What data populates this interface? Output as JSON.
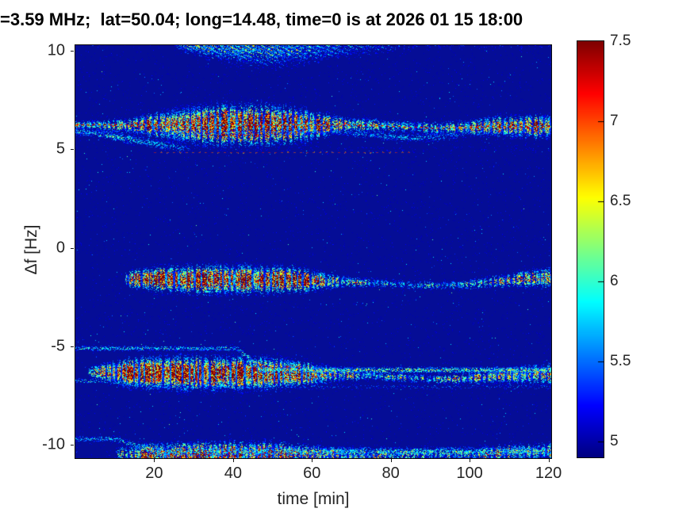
{
  "title": "=3.59 MHz;  lat=50.04; long=14.48, time=0 is at 2026 01 15 18:00",
  "axes": {
    "x": {
      "label": "time [min]",
      "ticks": [
        20,
        40,
        60,
        80,
        100,
        120
      ],
      "min": 0,
      "max": 120.7
    },
    "y": {
      "label": "Δf [Hz]",
      "ticks": [
        10,
        5,
        0,
        -5,
        -10
      ],
      "min": -10.7,
      "max": 10.3
    }
  },
  "colorbar": {
    "ticks": [
      7.5,
      7,
      6.5,
      6,
      5.5,
      5
    ],
    "top_value": 7.5,
    "bottom_value": 4.9,
    "colormap": "jet"
  },
  "chart_data": {
    "type": "heatmap",
    "title": "=3.59 MHz;  lat=50.04; long=14.48, time=0 is at 2026 01 15 18:00",
    "xlabel": "time [min]",
    "ylabel": "Δf [Hz]",
    "x_range": [
      0,
      120.7
    ],
    "y_range": [
      -10.7,
      10.3
    ],
    "color_range": [
      4.9,
      7.5
    ],
    "colormap": "jet",
    "background_level": 5.0,
    "background_color": "#050D96",
    "noise": {
      "sparse_dots": 9000,
      "sparse_max": 5.3,
      "bright_dots": 620,
      "bright_max": 5.85,
      "cyan_dots": 45
    },
    "bands": [
      {
        "name": "carrier-upper-6.2Hz",
        "stripes": true,
        "density": 2.0,
        "drift": [
          [
            0,
            6.25
          ],
          [
            75,
            6.25
          ],
          [
            85,
            6.15
          ],
          [
            95,
            6.08
          ],
          [
            105,
            6.18
          ],
          [
            121,
            6.2
          ]
        ],
        "amp": [
          [
            0,
            6.15
          ],
          [
            12,
            6.2
          ],
          [
            16,
            6.6
          ],
          [
            21,
            7.1
          ],
          [
            27,
            7.35
          ],
          [
            38,
            7.5
          ],
          [
            50,
            7.45
          ],
          [
            58,
            7.3
          ],
          [
            62,
            7.0
          ],
          [
            66,
            6.5
          ],
          [
            70,
            6.2
          ],
          [
            78,
            6.05
          ],
          [
            88,
            6.0
          ],
          [
            98,
            6.15
          ],
          [
            104,
            6.5
          ],
          [
            110,
            6.75
          ],
          [
            116,
            6.9
          ],
          [
            121,
            6.9
          ]
        ],
        "sigma": [
          [
            0,
            0.12
          ],
          [
            14,
            0.2
          ],
          [
            20,
            0.35
          ],
          [
            30,
            0.5
          ],
          [
            45,
            0.55
          ],
          [
            58,
            0.45
          ],
          [
            64,
            0.3
          ],
          [
            70,
            0.22
          ],
          [
            85,
            0.18
          ],
          [
            100,
            0.22
          ],
          [
            108,
            0.3
          ],
          [
            121,
            0.32
          ]
        ],
        "line": {
          "on": 4,
          "off": 3,
          "value": 7.3,
          "gap_value": 5.75
        }
      },
      {
        "name": "trace-5.6Hz-left",
        "stripes": false,
        "density": 1.6,
        "drift": [
          [
            0,
            5.95
          ],
          [
            8,
            5.75
          ],
          [
            16,
            5.45
          ],
          [
            24,
            5.2
          ],
          [
            30,
            5.05
          ]
        ],
        "amp": [
          [
            0,
            6.05
          ],
          [
            10,
            6.0
          ],
          [
            20,
            5.85
          ],
          [
            27,
            5.6
          ],
          [
            30,
            5.2
          ]
        ],
        "sigma": [
          [
            0,
            0.12
          ],
          [
            30,
            0.18
          ]
        ]
      },
      {
        "name": "trace-5.7Hz-mid",
        "stripes": false,
        "density": 1.4,
        "drift": [
          [
            66,
            5.9
          ],
          [
            75,
            5.75
          ],
          [
            85,
            5.6
          ],
          [
            93,
            5.65
          ],
          [
            100,
            5.85
          ]
        ],
        "amp": [
          [
            66,
            5.45
          ],
          [
            72,
            5.75
          ],
          [
            82,
            5.8
          ],
          [
            92,
            5.7
          ],
          [
            100,
            5.4
          ]
        ],
        "sigma": [
          [
            66,
            0.12
          ],
          [
            100,
            0.15
          ]
        ]
      },
      {
        "name": "faint-dashed-line-4.9Hz",
        "lineOnly": true,
        "alpha": 0.5,
        "drift": [
          [
            20,
            4.87
          ],
          [
            85,
            4.87
          ]
        ],
        "amp": [
          [
            20,
            6.9
          ],
          [
            85,
            6.9
          ]
        ],
        "sigma": [
          [
            20,
            0.05
          ],
          [
            85,
            0.05
          ]
        ],
        "line": {
          "on": 3,
          "off": 5,
          "value": 7.0,
          "gap_value": 0
        }
      },
      {
        "name": "band-minus1.6Hz",
        "stripes": true,
        "density": 2.0,
        "drift": [
          [
            0,
            -1.55
          ],
          [
            30,
            -1.6
          ],
          [
            55,
            -1.62
          ],
          [
            75,
            -1.78
          ],
          [
            88,
            -1.9
          ],
          [
            97,
            -1.88
          ],
          [
            107,
            -1.7
          ],
          [
            115,
            -1.55
          ],
          [
            121,
            -1.5
          ]
        ],
        "amp": [
          [
            0,
            5.0
          ],
          [
            12.5,
            5.0
          ],
          [
            13,
            6.4
          ],
          [
            17,
            7.0
          ],
          [
            22,
            7.2
          ],
          [
            30,
            7.4
          ],
          [
            42,
            7.35
          ],
          [
            52,
            7.2
          ],
          [
            60,
            7.0
          ],
          [
            64,
            6.5
          ],
          [
            68,
            6.1
          ],
          [
            75,
            5.85
          ],
          [
            88,
            5.8
          ],
          [
            97,
            5.85
          ],
          [
            105,
            6.0
          ],
          [
            112,
            6.3
          ],
          [
            118,
            6.45
          ],
          [
            121,
            6.45
          ]
        ],
        "sigma": [
          [
            13,
            0.22
          ],
          [
            20,
            0.32
          ],
          [
            35,
            0.4
          ],
          [
            55,
            0.35
          ],
          [
            64,
            0.22
          ],
          [
            72,
            0.14
          ],
          [
            95,
            0.13
          ],
          [
            107,
            0.18
          ],
          [
            115,
            0.25
          ],
          [
            121,
            0.28
          ]
        ]
      },
      {
        "name": "band-minus6.4Hz",
        "stripes": true,
        "density": 2.3,
        "drift": [
          [
            0,
            -6.3
          ],
          [
            25,
            -6.35
          ],
          [
            50,
            -6.38
          ],
          [
            65,
            -6.42
          ],
          [
            75,
            -6.5
          ],
          [
            85,
            -6.6
          ],
          [
            93,
            -6.67
          ],
          [
            100,
            -6.62
          ],
          [
            108,
            -6.5
          ],
          [
            115,
            -6.42
          ],
          [
            121,
            -6.4
          ]
        ],
        "amp": [
          [
            0,
            5.0
          ],
          [
            3,
            5.0
          ],
          [
            3.5,
            5.7
          ],
          [
            7,
            6.5
          ],
          [
            11,
            7.1
          ],
          [
            16,
            7.4
          ],
          [
            24,
            7.5
          ],
          [
            40,
            7.5
          ],
          [
            52,
            7.45
          ],
          [
            58,
            7.2
          ],
          [
            63,
            6.8
          ],
          [
            67,
            6.3
          ],
          [
            72,
            6.05
          ],
          [
            80,
            5.9
          ],
          [
            90,
            5.9
          ],
          [
            98,
            6.0
          ],
          [
            105,
            6.2
          ],
          [
            110,
            6.5
          ],
          [
            115,
            6.6
          ],
          [
            121,
            6.6
          ]
        ],
        "sigma": [
          [
            3,
            0.15
          ],
          [
            8,
            0.28
          ],
          [
            15,
            0.4
          ],
          [
            30,
            0.45
          ],
          [
            50,
            0.42
          ],
          [
            60,
            0.3
          ],
          [
            66,
            0.2
          ],
          [
            75,
            0.14
          ],
          [
            95,
            0.14
          ],
          [
            105,
            0.2
          ],
          [
            112,
            0.26
          ],
          [
            121,
            0.3
          ]
        ]
      },
      {
        "name": "streak-into-band-minus6",
        "stripes": false,
        "density": 1.6,
        "drift": [
          [
            41,
            -5.1
          ],
          [
            44,
            -5.6
          ],
          [
            47,
            -6.2
          ]
        ],
        "amp": [
          [
            41,
            5.9
          ],
          [
            47,
            6.2
          ]
        ],
        "sigma": [
          [
            41,
            0.08
          ],
          [
            47,
            0.1
          ]
        ]
      },
      {
        "name": "tail-below-minus6-start",
        "stripes": false,
        "density": 1.2,
        "drift": [
          [
            7,
            -6.75
          ],
          [
            17,
            -6.95
          ],
          [
            27,
            -7.05
          ]
        ],
        "amp": [
          [
            7,
            5.8
          ],
          [
            17,
            5.75
          ],
          [
            27,
            5.5
          ]
        ],
        "sigma": [
          [
            7,
            0.1
          ],
          [
            27,
            0.1
          ]
        ]
      },
      {
        "name": "band-minus10.4Hz",
        "stripes": true,
        "density": 1.9,
        "drift": [
          [
            0,
            -10.45
          ],
          [
            25,
            -10.5
          ],
          [
            45,
            -10.42
          ],
          [
            60,
            -10.45
          ],
          [
            75,
            -10.55
          ],
          [
            90,
            -10.5
          ],
          [
            105,
            -10.45
          ],
          [
            121,
            -10.3
          ]
        ],
        "amp": [
          [
            0,
            5.0
          ],
          [
            10,
            5.0
          ],
          [
            10.5,
            5.7
          ],
          [
            14,
            6.2
          ],
          [
            19,
            6.9
          ],
          [
            26,
            7.25
          ],
          [
            38,
            7.2
          ],
          [
            48,
            7.05
          ],
          [
            56,
            6.8
          ],
          [
            62,
            6.5
          ],
          [
            70,
            6.35
          ],
          [
            78,
            6.1
          ],
          [
            86,
            5.9
          ],
          [
            95,
            5.85
          ],
          [
            103,
            6.0
          ],
          [
            110,
            6.25
          ],
          [
            116,
            6.35
          ],
          [
            121,
            6.35
          ]
        ],
        "sigma": [
          [
            10,
            0.2
          ],
          [
            20,
            0.32
          ],
          [
            45,
            0.33
          ],
          [
            62,
            0.22
          ],
          [
            80,
            0.18
          ],
          [
            100,
            0.2
          ],
          [
            110,
            0.25
          ],
          [
            121,
            0.25
          ]
        ]
      },
      {
        "name": "streaks-into-bottom-band",
        "stripes": false,
        "density": 1.4,
        "drift": [
          [
            10,
            -9.7
          ],
          [
            15,
            -10.0
          ],
          [
            21,
            -10.35
          ]
        ],
        "amp": [
          [
            10,
            5.8
          ],
          [
            21,
            6.0
          ]
        ],
        "sigma": [
          [
            10,
            0.1
          ],
          [
            21,
            0.15
          ]
        ]
      },
      {
        "name": "band-plus10.3Hz",
        "stripes": false,
        "diag": true,
        "density": 1.4,
        "drift": [
          [
            0,
            10.45
          ],
          [
            10,
            10.45
          ],
          [
            26,
            10.4
          ],
          [
            32,
            10.3
          ],
          [
            40,
            10.2
          ],
          [
            50,
            10.1
          ],
          [
            58,
            10.12
          ],
          [
            68,
            10.25
          ],
          [
            80,
            10.35
          ],
          [
            121,
            10.45
          ]
        ],
        "amp": [
          [
            0,
            5.9
          ],
          [
            7,
            5.8
          ],
          [
            8,
            5.0
          ],
          [
            25,
            5.0
          ],
          [
            25.5,
            6.0
          ],
          [
            28,
            6.4
          ],
          [
            33,
            6.6
          ],
          [
            40,
            6.6
          ],
          [
            48,
            6.45
          ],
          [
            56,
            6.25
          ],
          [
            64,
            6.05
          ],
          [
            72,
            5.85
          ],
          [
            80,
            5.6
          ],
          [
            88,
            5.4
          ],
          [
            100,
            5.45
          ],
          [
            110,
            5.4
          ],
          [
            121,
            5.35
          ]
        ],
        "sigma": [
          [
            0,
            0.1
          ],
          [
            25,
            0.2
          ],
          [
            32,
            0.35
          ],
          [
            42,
            0.5
          ],
          [
            52,
            0.55
          ],
          [
            62,
            0.45
          ],
          [
            72,
            0.35
          ],
          [
            85,
            0.25
          ],
          [
            121,
            0.2
          ]
        ]
      }
    ]
  }
}
